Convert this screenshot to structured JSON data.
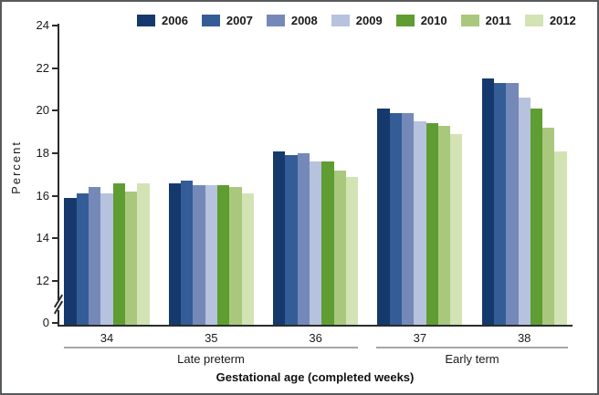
{
  "chart_data": {
    "type": "bar",
    "title": "",
    "ylabel": "Percent",
    "xlabel": "Gestational age (completed weeks)",
    "categories": [
      "34",
      "35",
      "36",
      "37",
      "38"
    ],
    "category_groups": [
      {
        "label": "Late preterm",
        "categories": [
          "34",
          "35",
          "36"
        ]
      },
      {
        "label": "Early term",
        "categories": [
          "37",
          "38"
        ]
      }
    ],
    "y_ticks": [
      0,
      12,
      14,
      16,
      18,
      20,
      22,
      24
    ],
    "y_axis_break_between": [
      0,
      12
    ],
    "ylim": [
      0,
      24
    ],
    "grid": false,
    "legend_position": "top",
    "series": [
      {
        "name": "2006",
        "color": "#15396c",
        "values": [
          15.9,
          16.6,
          18.1,
          20.1,
          21.5
        ]
      },
      {
        "name": "2007",
        "color": "#345d98",
        "values": [
          16.1,
          16.7,
          17.9,
          19.9,
          21.3
        ]
      },
      {
        "name": "2008",
        "color": "#7589b9",
        "values": [
          16.4,
          16.5,
          18.0,
          19.9,
          21.3
        ]
      },
      {
        "name": "2009",
        "color": "#b6c2de",
        "values": [
          16.1,
          16.5,
          17.6,
          19.5,
          20.6
        ]
      },
      {
        "name": "2010",
        "color": "#5f9c31",
        "values": [
          16.6,
          16.5,
          17.6,
          19.4,
          20.1
        ]
      },
      {
        "name": "2011",
        "color": "#a9c87e",
        "values": [
          16.2,
          16.4,
          17.2,
          19.3,
          19.2
        ]
      },
      {
        "name": "2012",
        "color": "#d3e3b4",
        "values": [
          16.6,
          16.1,
          16.9,
          18.9,
          18.1
        ]
      }
    ]
  }
}
